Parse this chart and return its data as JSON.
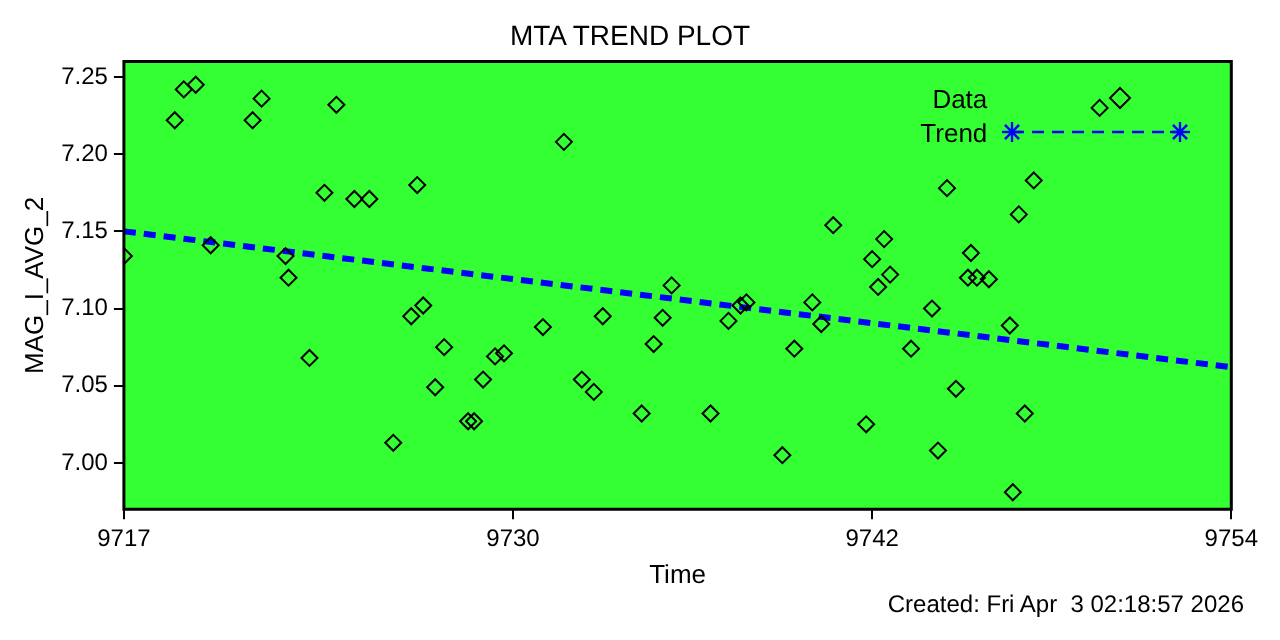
{
  "chart_data": {
    "type": "scatter",
    "title": "MTA TREND PLOT",
    "xlabel": "Time",
    "ylabel": "MAG_I_AVG_2",
    "xlim": [
      9717,
      9754
    ],
    "xticks": [
      9717,
      9730,
      9742,
      9754
    ],
    "ylim": [
      6.97,
      7.26
    ],
    "yticks": [
      {
        "value": 7,
        "label": "7.00"
      },
      7.05,
      {
        "value": 7.1,
        "label": "7.10"
      },
      7.15,
      {
        "value": 7.2,
        "label": "7.20"
      },
      7.25
    ],
    "legend": "top right",
    "annotations": [
      "Created: Fri Apr  3 02:18:57 2026"
    ],
    "series": [
      {
        "name": "Data",
        "marker": "diamond",
        "color": "#000000",
        "x": [
          9717.0,
          9718.7,
          9719.0,
          9719.4,
          9719.9,
          9721.3,
          9721.6,
          9722.4,
          9722.5,
          9723.2,
          9723.7,
          9724.1,
          9724.7,
          9725.2,
          9726.0,
          9726.6,
          9726.8,
          9727.0,
          9727.4,
          9727.7,
          9728.5,
          9728.7,
          9729.0,
          9729.4,
          9729.7,
          9731.0,
          9731.7,
          9732.3,
          9732.7,
          9733.0,
          9734.3,
          9734.7,
          9735.0,
          9735.3,
          9736.6,
          9737.2,
          9737.6,
          9737.8,
          9739.0,
          9739.4,
          9740.0,
          9740.3,
          9740.7,
          9741.8,
          9742.0,
          9742.2,
          9742.4,
          9742.6,
          9743.3,
          9744.0,
          9744.2,
          9744.5,
          9744.8,
          9745.2,
          9745.3,
          9745.5,
          9745.9,
          9746.6,
          9746.7,
          9746.9,
          9747.1,
          9747.4,
          9749.6
        ],
        "values": [
          7.134,
          7.222,
          7.242,
          7.245,
          7.141,
          7.222,
          7.236,
          7.134,
          7.12,
          7.068,
          7.175,
          7.232,
          7.171,
          7.171,
          7.013,
          7.095,
          7.18,
          7.102,
          7.049,
          7.075,
          7.027,
          7.027,
          7.054,
          7.069,
          7.071,
          7.088,
          7.208,
          7.054,
          7.046,
          7.095,
          7.032,
          7.077,
          7.094,
          7.115,
          7.032,
          7.092,
          7.102,
          7.104,
          7.005,
          7.074,
          7.104,
          7.09,
          7.154,
          7.025,
          7.132,
          7.114,
          7.145,
          7.122,
          7.074,
          7.1,
          7.008,
          7.178,
          7.048,
          7.12,
          7.136,
          7.12,
          7.119,
          7.089,
          6.981,
          7.161,
          7.032,
          7.183,
          7.23
        ]
      },
      {
        "name": "Trend",
        "type": "line",
        "line_style": "dashed",
        "color": "#0000ff",
        "x": [
          9717,
          9754
        ],
        "values": [
          7.15,
          7.062
        ]
      }
    ]
  }
}
